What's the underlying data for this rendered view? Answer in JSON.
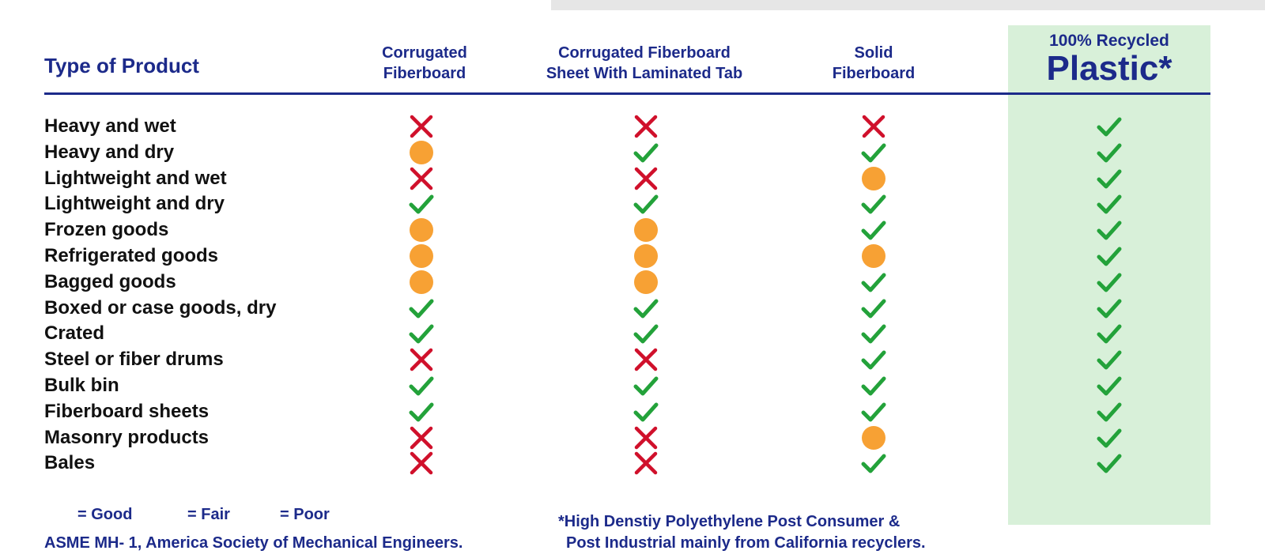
{
  "header": {
    "type_label": "Type of Product",
    "columns": [
      {
        "line1": "Corrugated",
        "line2": "Fiberboard"
      },
      {
        "line1": "Corrugated Fiberboard",
        "line2": "Sheet With Laminated Tab"
      },
      {
        "line1": "Solid",
        "line2": "Fiberboard"
      },
      {
        "line1": "100% Recycled",
        "line2": "Plastic*"
      }
    ]
  },
  "rows": [
    {
      "label": "Heavy and wet",
      "ratings": [
        "poor",
        "poor",
        "poor",
        "good"
      ]
    },
    {
      "label": "Heavy and dry",
      "ratings": [
        "fair",
        "good",
        "good",
        "good"
      ]
    },
    {
      "label": "Lightweight and wet",
      "ratings": [
        "poor",
        "poor",
        "fair",
        "good"
      ]
    },
    {
      "label": "Lightweight and dry",
      "ratings": [
        "good",
        "good",
        "good",
        "good"
      ]
    },
    {
      "label": "Frozen goods",
      "ratings": [
        "fair",
        "fair",
        "good",
        "good"
      ]
    },
    {
      "label": "Refrigerated goods",
      "ratings": [
        "fair",
        "fair",
        "fair",
        "good"
      ]
    },
    {
      "label": "Bagged goods",
      "ratings": [
        "fair",
        "fair",
        "good",
        "good"
      ]
    },
    {
      "label": "Boxed or case goods, dry",
      "ratings": [
        "good",
        "good",
        "good",
        "good"
      ]
    },
    {
      "label": "Crated",
      "ratings": [
        "good",
        "good",
        "good",
        "good"
      ]
    },
    {
      "label": "Steel or fiber drums",
      "ratings": [
        "poor",
        "poor",
        "good",
        "good"
      ]
    },
    {
      "label": "Bulk bin",
      "ratings": [
        "good",
        "good",
        "good",
        "good"
      ]
    },
    {
      "label": "Fiberboard sheets",
      "ratings": [
        "good",
        "good",
        "good",
        "good"
      ]
    },
    {
      "label": "Masonry products",
      "ratings": [
        "poor",
        "poor",
        "fair",
        "good"
      ]
    },
    {
      "label": "Bales",
      "ratings": [
        "poor",
        "poor",
        "good",
        "good"
      ]
    }
  ],
  "legend": {
    "good": "= Good",
    "fair": "= Fair",
    "poor": "= Poor"
  },
  "colors": {
    "good": "#23a23a",
    "fair": "#f7a134",
    "poor": "#d0102b",
    "title": "#1c2a8a",
    "plastic_bg": "#d8f0d9"
  },
  "icons": {
    "good": "check-icon",
    "fair": "circle-icon",
    "poor": "x-icon"
  },
  "footer": {
    "source": "ASME MH- 1, America Society of Mechanical Engineers.",
    "note_line1": "*High Denstiy Polyethylene Post Consumer &",
    "note_line2": "Post Industrial mainly from California recyclers."
  }
}
